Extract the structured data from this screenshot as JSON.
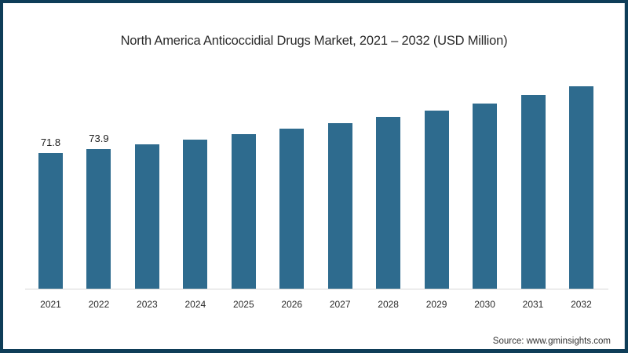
{
  "title": "North America Anticoccidial Drugs Market, 2021 – 2032 (USD Million)",
  "source": "Source: www.gminsights.com",
  "colors": {
    "bar": "#2e6b8e",
    "frame": "#0e3d58",
    "background": "#ffffff"
  },
  "bars": [
    {
      "year": "2021",
      "label": "71.8"
    },
    {
      "year": "2022",
      "label": "73.9"
    },
    {
      "year": "2023",
      "label": ""
    },
    {
      "year": "2024",
      "label": ""
    },
    {
      "year": "2025",
      "label": ""
    },
    {
      "year": "2026",
      "label": ""
    },
    {
      "year": "2027",
      "label": ""
    },
    {
      "year": "2028",
      "label": ""
    },
    {
      "year": "2029",
      "label": ""
    },
    {
      "year": "2030",
      "label": ""
    },
    {
      "year": "2031",
      "label": ""
    },
    {
      "year": "2032",
      "label": ""
    }
  ],
  "chart_data": {
    "type": "bar",
    "title": "North America Anticoccidial Drugs Market, 2021 – 2032 (USD Million)",
    "xlabel": "",
    "ylabel": "USD Million",
    "categories": [
      "2021",
      "2022",
      "2023",
      "2024",
      "2025",
      "2026",
      "2027",
      "2028",
      "2029",
      "2030",
      "2031",
      "2032"
    ],
    "values": [
      71.8,
      73.9,
      76.5,
      78.9,
      81.6,
      84.5,
      87.7,
      90.8,
      94.3,
      97.9,
      102.4,
      107.2
    ],
    "data_labels_shown": {
      "2021": 71.8,
      "2022": 73.9
    },
    "ylim": [
      0,
      115
    ],
    "grid": false,
    "legend": "none",
    "y_axis_visible": false,
    "source": "Source: www.gminsights.com"
  }
}
